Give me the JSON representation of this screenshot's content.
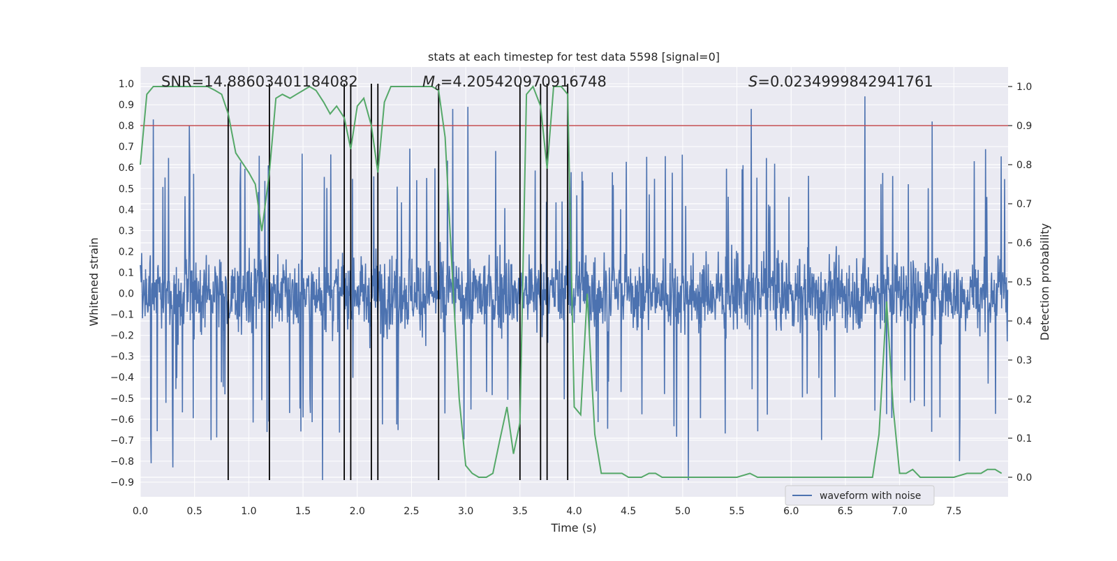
{
  "chart_data": {
    "type": "line",
    "title": "stats at each timestep for test data 5598 [signal=0]",
    "xlabel": "Time (s)",
    "ylabel_left": "Whitened strain",
    "ylabel_right": "Detection probability",
    "xlim": [
      0,
      8.0
    ],
    "ylim_left": [
      -0.97,
      1.08
    ],
    "ylim_right": [
      -0.05,
      1.05
    ],
    "x_ticks": [
      0.0,
      0.5,
      1.0,
      1.5,
      2.0,
      2.5,
      3.0,
      3.5,
      4.0,
      4.5,
      5.0,
      5.5,
      6.0,
      6.5,
      7.0,
      7.5
    ],
    "x_tick_labels": [
      "0.0",
      "0.5",
      "1.0",
      "1.5",
      "2.0",
      "2.5",
      "3.0",
      "3.5",
      "4.0",
      "4.5",
      "5.0",
      "5.5",
      "6.0",
      "6.5",
      "7.0",
      "7.5"
    ],
    "y_left_ticks": [
      1.0,
      0.9,
      0.8,
      0.7,
      0.6,
      0.5,
      0.4,
      0.3,
      0.2,
      0.1,
      0.0,
      -0.1,
      -0.2,
      -0.3,
      -0.4,
      -0.5,
      -0.6,
      -0.7,
      -0.8,
      -0.9
    ],
    "y_left_tick_labels": [
      "1.0",
      "0.9",
      "0.8",
      "0.7",
      "0.6",
      "0.5",
      "0.4",
      "0.3",
      "0.2",
      "0.1",
      "0.0",
      "−0.1",
      "−0.2",
      "−0.3",
      "−0.4",
      "−0.5",
      "−0.6",
      "−0.7",
      "−0.8",
      "−0.9"
    ],
    "y_right_ticks": [
      1.0,
      0.9,
      0.8,
      0.7,
      0.6,
      0.5,
      0.4,
      0.3,
      0.2,
      0.1,
      0.0
    ],
    "y_right_tick_labels": [
      "1.0",
      "0.9",
      "0.8",
      "0.7",
      "0.6",
      "0.5",
      "0.4",
      "0.3",
      "0.2",
      "0.1",
      "0.0"
    ],
    "annotations": {
      "snr": "SNR=14.88603401184082",
      "mc_symbol": "M",
      "mc_sub": "c",
      "mc_value": "=4.205420970916748",
      "s_symbol": "S",
      "s_value": "=0.0234999842941761"
    },
    "legend": {
      "label": "waveform with noise",
      "placement": "lower-right"
    },
    "threshold": {
      "value": 0.9,
      "axis": "right",
      "color": "#c44e52"
    },
    "vlines_x": [
      0.81,
      1.19,
      1.88,
      1.94,
      2.13,
      2.19,
      2.75,
      3.5,
      3.69,
      3.75,
      3.94
    ],
    "vline_range_left": [
      -0.89,
      1.0
    ],
    "waveform": {
      "color": "#4c72b0",
      "duration": 8.0,
      "n_samples": 2000,
      "base_amplitude": 0.15,
      "spike_peaks": [
        {
          "x": 0.12,
          "y": 0.83,
          "sign": 1
        },
        {
          "x": 0.1,
          "y": -0.81,
          "sign": -1
        },
        {
          "x": 0.3,
          "y": -0.83,
          "sign": -1
        },
        {
          "x": 0.45,
          "y": 0.8,
          "sign": 1
        },
        {
          "x": 1.68,
          "y": -0.89,
          "sign": -1
        },
        {
          "x": 2.88,
          "y": 0.88,
          "sign": 1
        },
        {
          "x": 3.02,
          "y": 0.89,
          "sign": 1
        },
        {
          "x": 5.05,
          "y": -0.89,
          "sign": -1
        },
        {
          "x": 5.63,
          "y": 0.88,
          "sign": 1
        },
        {
          "x": 6.68,
          "y": 0.94,
          "sign": 1
        },
        {
          "x": 7.3,
          "y": 0.82,
          "sign": 1
        },
        {
          "x": 7.55,
          "y": -0.8,
          "sign": -1
        }
      ]
    },
    "probability_series": {
      "color": "#55a868",
      "x": [
        0.0,
        0.06,
        0.12,
        0.25,
        0.5,
        0.62,
        0.69,
        0.75,
        0.81,
        0.88,
        1.0,
        1.06,
        1.12,
        1.19,
        1.25,
        1.31,
        1.38,
        1.44,
        1.5,
        1.56,
        1.62,
        1.69,
        1.75,
        1.81,
        1.88,
        1.94,
        2.0,
        2.06,
        2.13,
        2.19,
        2.25,
        2.31,
        2.5,
        2.69,
        2.75,
        2.81,
        2.88,
        2.94,
        3.0,
        3.06,
        3.12,
        3.19,
        3.25,
        3.31,
        3.38,
        3.44,
        3.5,
        3.56,
        3.62,
        3.69,
        3.75,
        3.81,
        3.88,
        3.94,
        4.0,
        4.06,
        4.12,
        4.19,
        4.25,
        4.31,
        4.38,
        4.44,
        4.5,
        4.56,
        4.62,
        4.69,
        4.75,
        4.81,
        4.88,
        5.0,
        5.25,
        5.38,
        5.5,
        5.62,
        5.69,
        5.75,
        6.0,
        6.25,
        6.5,
        6.69,
        6.75,
        6.81,
        6.88,
        6.94,
        7.0,
        7.06,
        7.12,
        7.19,
        7.25,
        7.31,
        7.5,
        7.62,
        7.75,
        7.81,
        7.88,
        7.94
      ],
      "values": [
        0.8,
        0.98,
        1.0,
        1.0,
        1.0,
        1.0,
        0.99,
        0.98,
        0.93,
        0.83,
        0.78,
        0.75,
        0.63,
        0.78,
        0.97,
        0.98,
        0.97,
        0.98,
        0.99,
        1.0,
        0.99,
        0.96,
        0.93,
        0.95,
        0.92,
        0.84,
        0.95,
        0.97,
        0.9,
        0.78,
        0.96,
        1.0,
        1.0,
        1.0,
        0.99,
        0.87,
        0.5,
        0.2,
        0.03,
        0.01,
        0.0,
        0.0,
        0.01,
        0.09,
        0.18,
        0.06,
        0.14,
        0.98,
        1.0,
        0.95,
        0.79,
        1.0,
        1.0,
        0.98,
        0.18,
        0.16,
        0.47,
        0.11,
        0.01,
        0.01,
        0.01,
        0.01,
        0.0,
        0.0,
        0.0,
        0.01,
        0.01,
        0.0,
        0.0,
        0.0,
        0.0,
        0.0,
        0.0,
        0.01,
        0.0,
        0.0,
        0.0,
        0.0,
        0.0,
        0.0,
        0.0,
        0.11,
        0.45,
        0.18,
        0.01,
        0.01,
        0.02,
        0.0,
        0.0,
        0.0,
        0.0,
        0.01,
        0.01,
        0.02,
        0.02,
        0.01
      ]
    }
  }
}
